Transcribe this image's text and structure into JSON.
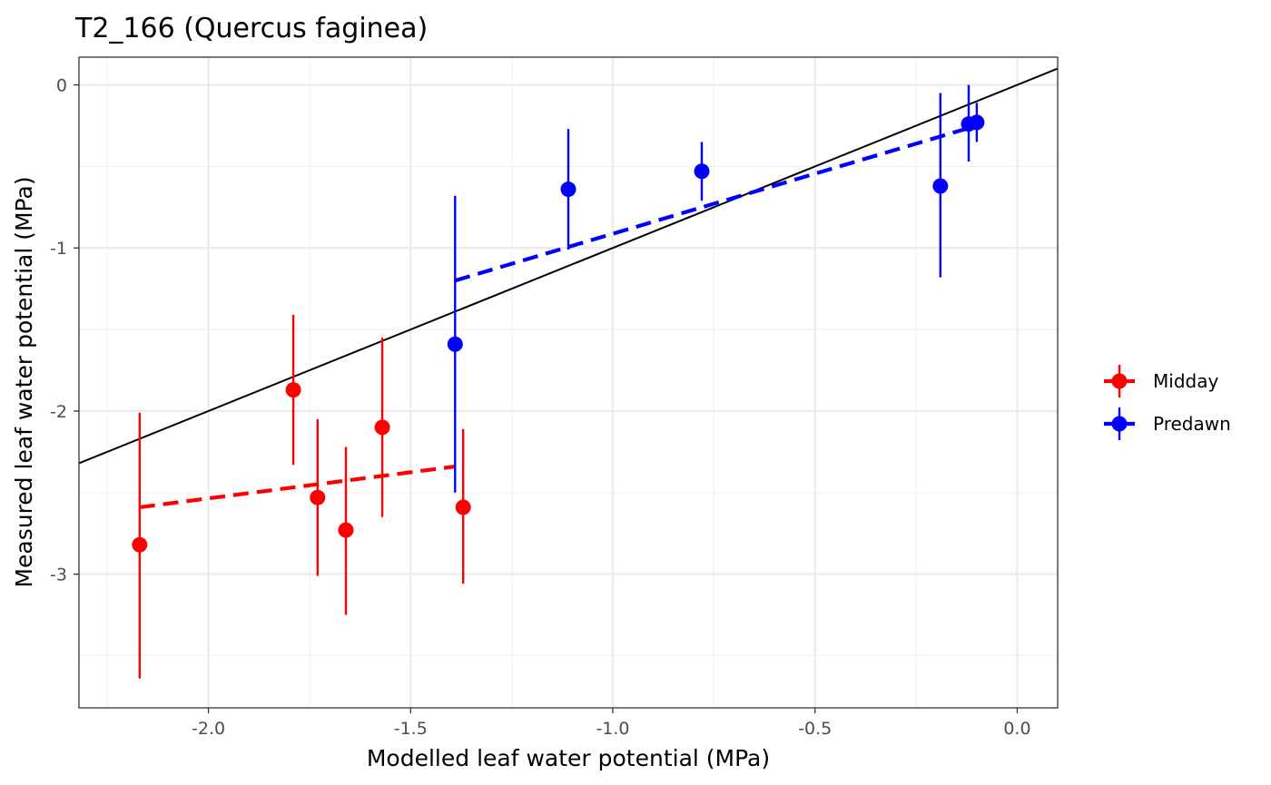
{
  "chart_data": {
    "type": "scatter",
    "title": "T2_166 (Quercus faginea)",
    "xlabel": "Modelled leaf water potential (MPa)",
    "ylabel": "Measured leaf water potential (MPa)",
    "xlim": [
      -2.32,
      0.1
    ],
    "ylim": [
      -3.82,
      0.17
    ],
    "x_ticks": [
      -2.0,
      -1.5,
      -1.0,
      -0.5,
      0.0
    ],
    "x_tick_labels": [
      "-2.0",
      "-1.5",
      "-1.0",
      "-0.5",
      "0.0"
    ],
    "y_ticks": [
      0,
      -1,
      -2,
      -3
    ],
    "y_tick_labels": [
      "0",
      "-1",
      "-2",
      "-3"
    ],
    "grid": true,
    "legend_position": "right",
    "reference_line": {
      "slope": 1,
      "intercept": 0,
      "color": "#000000"
    },
    "series": [
      {
        "name": "Midday",
        "color": "#ff0000",
        "points": [
          {
            "x": -2.17,
            "y": -2.82,
            "ymin": -3.64,
            "ymax": -2.01
          },
          {
            "x": -1.79,
            "y": -1.87,
            "ymin": -2.33,
            "ymax": -1.41
          },
          {
            "x": -1.73,
            "y": -2.53,
            "ymin": -3.01,
            "ymax": -2.05
          },
          {
            "x": -1.66,
            "y": -2.73,
            "ymin": -3.25,
            "ymax": -2.22
          },
          {
            "x": -1.57,
            "y": -2.1,
            "ymin": -2.65,
            "ymax": -1.55
          },
          {
            "x": -1.37,
            "y": -2.59,
            "ymin": -3.06,
            "ymax": -2.11
          }
        ],
        "fit": {
          "x": [
            -2.17,
            -1.39
          ],
          "y": [
            -2.59,
            -2.34
          ]
        }
      },
      {
        "name": "Predawn",
        "color": "#0000ff",
        "points": [
          {
            "x": -1.39,
            "y": -1.59,
            "ymin": -2.5,
            "ymax": -0.68
          },
          {
            "x": -1.11,
            "y": -0.64,
            "ymin": -1.01,
            "ymax": -0.27
          },
          {
            "x": -0.78,
            "y": -0.53,
            "ymin": -0.71,
            "ymax": -0.35
          },
          {
            "x": -0.19,
            "y": -0.62,
            "ymin": -1.18,
            "ymax": -0.05
          },
          {
            "x": -0.12,
            "y": -0.24,
            "ymin": -0.47,
            "ymax": 0.0
          },
          {
            "x": -0.1,
            "y": -0.23,
            "ymin": -0.35,
            "ymax": -0.11
          }
        ],
        "fit": {
          "x": [
            -1.39,
            -0.1
          ],
          "y": [
            -1.2,
            -0.25
          ]
        }
      }
    ]
  }
}
